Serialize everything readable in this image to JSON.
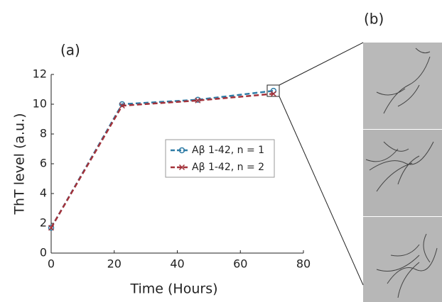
{
  "chart_data": {
    "type": "line",
    "panel_labels": [
      "(a)",
      "(b)"
    ],
    "x_label": "Time (Hours)",
    "y_label": "ThT level (a.u.)",
    "series": [
      {
        "name": "Aβ 1-42, n = 1",
        "color": "#2f7ca6",
        "marker": "o",
        "x": [
          0,
          22.5,
          46.5,
          70.5
        ],
        "values": [
          1.7,
          10.0,
          10.3,
          10.9
        ]
      },
      {
        "name": "Aβ 1-42, n = 2",
        "color": "#a3323a",
        "marker": "x",
        "x": [
          0,
          22.5,
          46.5,
          70.5
        ],
        "values": [
          1.7,
          9.9,
          10.25,
          10.7
        ]
      }
    ],
    "xlim": [
      0,
      80
    ],
    "xticks": [
      0,
      20,
      40,
      60,
      80
    ],
    "ylim": [
      0,
      12
    ],
    "yticks": [
      0,
      2,
      4,
      6,
      8,
      10,
      12
    ],
    "grid": false
  }
}
